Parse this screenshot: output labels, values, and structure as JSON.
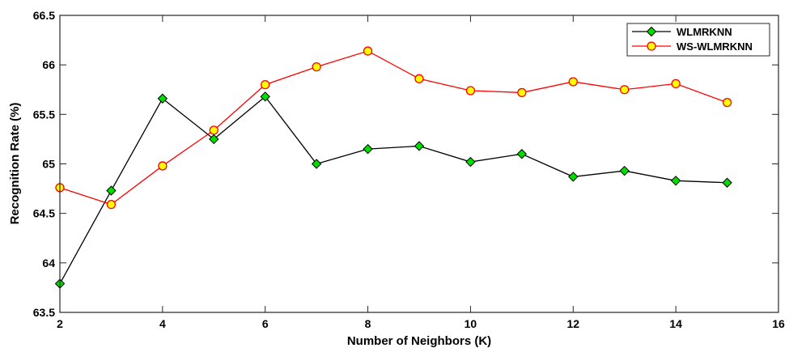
{
  "chart_data": {
    "type": "line",
    "title": "",
    "xlabel": "Number of Neighbors (K)",
    "ylabel": "Recognition Rate (%)",
    "xlim": [
      2,
      16
    ],
    "ylim": [
      63.5,
      66.5
    ],
    "xticks": [
      2,
      4,
      6,
      8,
      10,
      12,
      14,
      16
    ],
    "yticks": [
      63.5,
      64,
      64.5,
      65,
      65.5,
      66,
      66.5
    ],
    "grid": false,
    "legend_position": "top-right",
    "x": [
      2,
      3,
      4,
      5,
      6,
      7,
      8,
      9,
      10,
      11,
      12,
      13,
      14,
      15
    ],
    "series": [
      {
        "name": "WLMRKNN",
        "line_color": "#000000",
        "marker": "diamond",
        "marker_color": "#00dd00",
        "values": [
          63.79,
          64.73,
          65.66,
          65.25,
          65.68,
          65.0,
          65.15,
          65.18,
          65.02,
          65.1,
          64.87,
          64.93,
          64.83,
          64.81
        ]
      },
      {
        "name": "WS-WLMRKNN",
        "line_color": "#ff0000",
        "marker": "circle",
        "marker_color": "#ffff00",
        "values": [
          64.76,
          64.59,
          64.98,
          65.34,
          65.8,
          65.98,
          66.14,
          65.86,
          65.74,
          65.72,
          65.83,
          65.75,
          65.81,
          65.62
        ]
      }
    ]
  }
}
